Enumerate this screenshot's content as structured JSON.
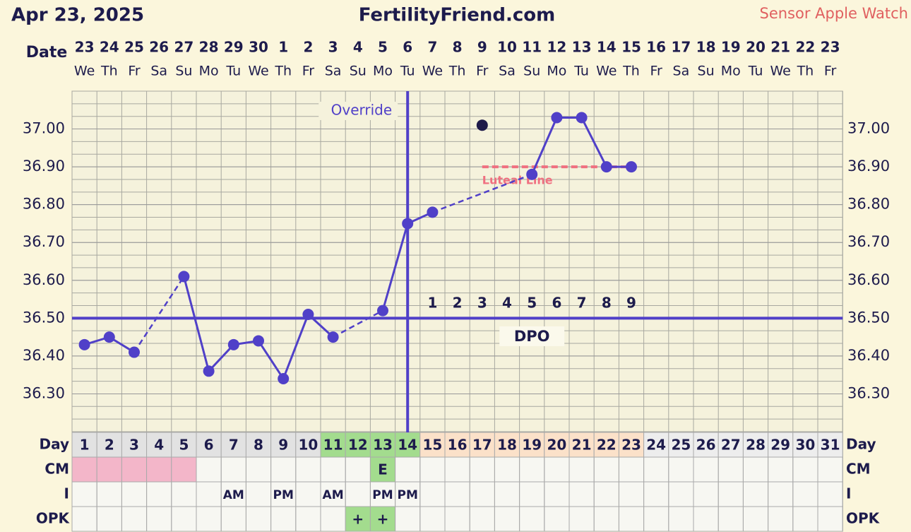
{
  "header": {
    "date": "Apr 23, 2025",
    "site": "FertilityFriend.com",
    "sensor": "Sensor Apple Watch"
  },
  "chart_data": {
    "type": "line",
    "x_label": "Date",
    "dates": [
      23,
      24,
      25,
      26,
      27,
      28,
      29,
      30,
      1,
      2,
      3,
      4,
      5,
      6,
      7,
      8,
      9,
      10,
      11,
      12,
      13,
      14,
      15,
      16,
      17,
      18,
      19,
      20,
      21,
      22,
      23
    ],
    "weekdays": [
      "We",
      "Th",
      "Fr",
      "Sa",
      "Su",
      "Mo",
      "Tu",
      "We",
      "Th",
      "Fr",
      "Sa",
      "Su",
      "Mo",
      "Tu",
      "We",
      "Th",
      "Fr",
      "Sa",
      "Su",
      "Mo",
      "Tu",
      "We",
      "Th",
      "Fr",
      "Sa",
      "Su",
      "Mo",
      "Tu",
      "We",
      "Th",
      "Fr"
    ],
    "ylim": [
      36.2,
      37.1
    ],
    "yticks": [
      {
        "value": 36.3,
        "label": "36.30"
      },
      {
        "value": 36.4,
        "label": "36.40"
      },
      {
        "value": 36.5,
        "label": "36.50"
      },
      {
        "value": 36.6,
        "label": "36.60"
      },
      {
        "value": 36.7,
        "label": "36.70"
      },
      {
        "value": 36.8,
        "label": "36.80"
      },
      {
        "value": 36.9,
        "label": "36.90"
      },
      {
        "value": 37.0,
        "label": "37.00"
      }
    ],
    "series": [
      {
        "color": "#5040c8",
        "values": [
          36.43,
          36.45,
          36.41,
          null,
          36.61,
          36.36,
          36.43,
          36.44,
          36.34,
          36.51,
          36.45,
          null,
          36.52,
          36.75,
          36.78,
          null,
          null,
          null,
          36.88,
          37.03,
          37.03,
          36.9,
          36.9,
          null,
          null,
          null,
          null,
          null,
          null,
          null,
          null
        ]
      },
      {
        "color": "#1e1a4a",
        "connected": false,
        "values": [
          null,
          null,
          null,
          null,
          null,
          null,
          null,
          null,
          null,
          null,
          null,
          null,
          null,
          null,
          null,
          null,
          37.01,
          null,
          null,
          null,
          null,
          null,
          null,
          null,
          null,
          null,
          null,
          null,
          null,
          null,
          null
        ]
      }
    ],
    "coverline": {
      "value": 36.5,
      "color": "#5040c8"
    },
    "ovulation": {
      "day": 14,
      "label": "Override"
    },
    "luteal_line": {
      "label": "Luteal Line",
      "value": 36.9,
      "from_day": 17,
      "to_day": 23,
      "color": "#f07080"
    },
    "dpo": {
      "label": "DPO",
      "values": [
        null,
        null,
        null,
        null,
        null,
        null,
        null,
        null,
        null,
        null,
        null,
        null,
        null,
        null,
        1,
        2,
        3,
        4,
        5,
        6,
        7,
        8,
        9,
        null,
        null,
        null,
        null,
        null,
        null,
        null,
        null
      ]
    }
  },
  "table": {
    "day": {
      "label": "Day",
      "values": [
        1,
        2,
        3,
        4,
        5,
        6,
        7,
        8,
        9,
        10,
        11,
        12,
        13,
        14,
        15,
        16,
        17,
        18,
        19,
        20,
        21,
        22,
        23,
        24,
        25,
        26,
        27,
        28,
        29,
        30,
        31
      ],
      "fills": [
        "#e2e2e2",
        "#e2e2e2",
        "#e2e2e2",
        "#e2e2e2",
        "#e2e2e2",
        "#e2e2e2",
        "#e2e2e2",
        "#e2e2e2",
        "#e2e2e2",
        "#e2e2e2",
        "#a3dc8e",
        "#a3dc8e",
        "#a3dc8e",
        "#a3dc8e",
        "#fbe1c9",
        "#fbe1c9",
        "#fbe1c9",
        "#fbe1c9",
        "#fbe1c9",
        "#fbe1c9",
        "#fbe1c9",
        "#fbe1c9",
        "#fbe1c9",
        "#ededed",
        "#ededed",
        "#ededed",
        "#ededed",
        "#ededed",
        "#ededed",
        "#ededed",
        "#ededed"
      ]
    },
    "cm": {
      "label": "CM",
      "values": [
        null,
        null,
        null,
        null,
        null,
        null,
        null,
        null,
        null,
        null,
        null,
        null,
        "E",
        null,
        null,
        null,
        null,
        null,
        null,
        null,
        null,
        null,
        null,
        null,
        null,
        null,
        null,
        null,
        null,
        null,
        null
      ],
      "fills": [
        "#f3b6c9",
        "#f3b6c9",
        "#f3b6c9",
        "#f3b6c9",
        "#f3b6c9",
        null,
        null,
        null,
        null,
        null,
        null,
        null,
        "#a3dc8e",
        null,
        null,
        null,
        null,
        null,
        null,
        null,
        null,
        null,
        null,
        null,
        null,
        null,
        null,
        null,
        null,
        null,
        null
      ]
    },
    "i": {
      "label": "I",
      "values": [
        null,
        null,
        null,
        null,
        null,
        null,
        "AM",
        null,
        "PM",
        null,
        "AM",
        null,
        "PM",
        "PM",
        null,
        null,
        null,
        null,
        null,
        null,
        null,
        null,
        null,
        null,
        null,
        null,
        null,
        null,
        null,
        null,
        null
      ]
    },
    "opk": {
      "label": "OPK",
      "values": [
        null,
        null,
        null,
        null,
        null,
        null,
        null,
        null,
        null,
        null,
        null,
        "+",
        "+",
        null,
        null,
        null,
        null,
        null,
        null,
        null,
        null,
        null,
        null,
        null,
        null,
        null,
        null,
        null,
        null,
        null,
        null
      ],
      "fills": [
        null,
        null,
        null,
        null,
        null,
        null,
        null,
        null,
        null,
        null,
        null,
        "#a3dc8e",
        "#a3dc8e",
        null,
        null,
        null,
        null,
        null,
        null,
        null,
        null,
        null,
        null,
        null,
        null,
        null,
        null,
        null,
        null,
        null,
        null
      ]
    }
  }
}
